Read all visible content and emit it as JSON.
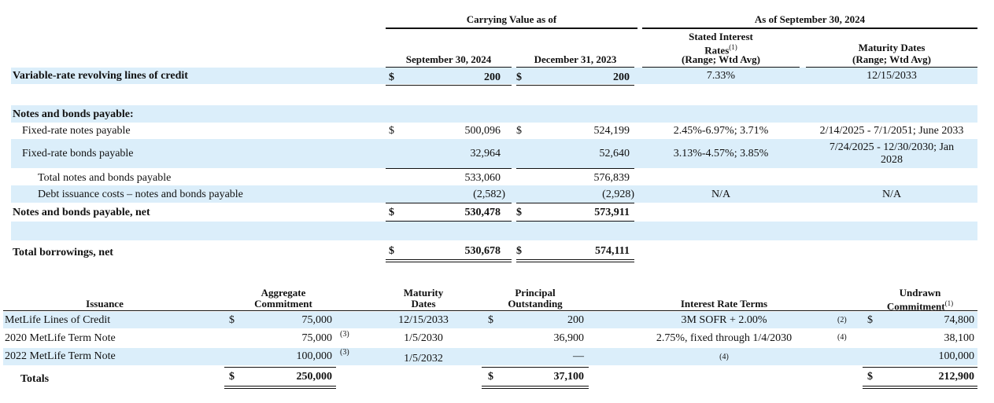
{
  "table1": {
    "group_carrying": "Carrying Value as of",
    "group_asof": "As of September 30, 2024",
    "col_sep": "September 30, 2024",
    "col_dec": "December 31, 2023",
    "col_rates_l1": "Stated Interest",
    "col_rates_l2": "Rates",
    "col_rates_l2_sup": "(1)",
    "col_rates_l3": "(Range; Wtd Avg)",
    "col_maturity_l1": "Maturity Dates",
    "col_maturity_l2": "(Range; Wtd Avg)",
    "dollar": "$",
    "rows": {
      "revolving": {
        "label": "Variable-rate revolving lines of credit",
        "sep": "200",
        "dec": "200",
        "rate": "7.33%",
        "maturity": "12/15/2033"
      },
      "notes_header": {
        "label": "Notes and bonds payable:"
      },
      "fixed_notes": {
        "label": "Fixed-rate notes payable",
        "sep": "500,096",
        "dec": "524,199",
        "rate": "2.45%-6.97%; 3.71%",
        "maturity": "2/14/2025 - 7/1/2051; June 2033"
      },
      "fixed_bonds": {
        "label": "Fixed-rate bonds payable",
        "sep": "32,964",
        "dec": "52,640",
        "rate": "3.13%-4.57%; 3.85%",
        "maturity_l1": "7/24/2025 - 12/30/2030; Jan",
        "maturity_l2": "2028"
      },
      "total_notes": {
        "label": "Total notes and bonds payable",
        "sep": "533,060",
        "dec": "576,839"
      },
      "debt_costs": {
        "label": "Debt issuance costs – notes and bonds payable",
        "sep": "(2,582)",
        "dec": "(2,928)",
        "rate": "N/A",
        "maturity": "N/A"
      },
      "notes_net": {
        "label": "Notes and bonds payable, net",
        "sep": "530,478",
        "dec": "573,911"
      },
      "total_borrowings": {
        "label": "Total borrowings, net",
        "sep": "530,678",
        "dec": "574,111"
      }
    }
  },
  "table2": {
    "col_issuance": "Issuance",
    "col_aggregate_l1": "Aggregate",
    "col_aggregate_l2": "Commitment",
    "col_maturity_l1": "Maturity",
    "col_maturity_l2": "Dates",
    "col_principal_l1": "Principal",
    "col_principal_l2": "Outstanding",
    "col_interest": "Interest Rate Terms",
    "col_undrawn_l1": "Undrawn",
    "col_undrawn_l2": "Commitment",
    "col_undrawn_sup": "(1)",
    "dollar": "$",
    "rows": [
      {
        "issuance": "MetLife Lines of Credit",
        "aggregate": "75,000",
        "aggregate_note": "",
        "maturity": "12/15/2033",
        "principal": "200",
        "interest": "3M SOFR + 2.00%",
        "interest_note": "(2)",
        "undrawn": "74,800"
      },
      {
        "issuance": "2020 MetLife Term Note",
        "aggregate": "75,000",
        "aggregate_note": "(3)",
        "maturity": "1/5/2030",
        "principal": "36,900",
        "interest": "2.75%, fixed through 1/4/2030",
        "interest_note": "(4)",
        "undrawn": "38,100"
      },
      {
        "issuance": "2022 MetLife Term Note",
        "aggregate": "100,000",
        "aggregate_note": "(3)",
        "maturity": "1/5/2032",
        "principal": "—",
        "interest": "(4)",
        "interest_note": "",
        "undrawn": "100,000"
      }
    ],
    "totals": {
      "label": "Totals",
      "aggregate": "250,000",
      "principal": "37,100",
      "undrawn": "212,900"
    }
  }
}
